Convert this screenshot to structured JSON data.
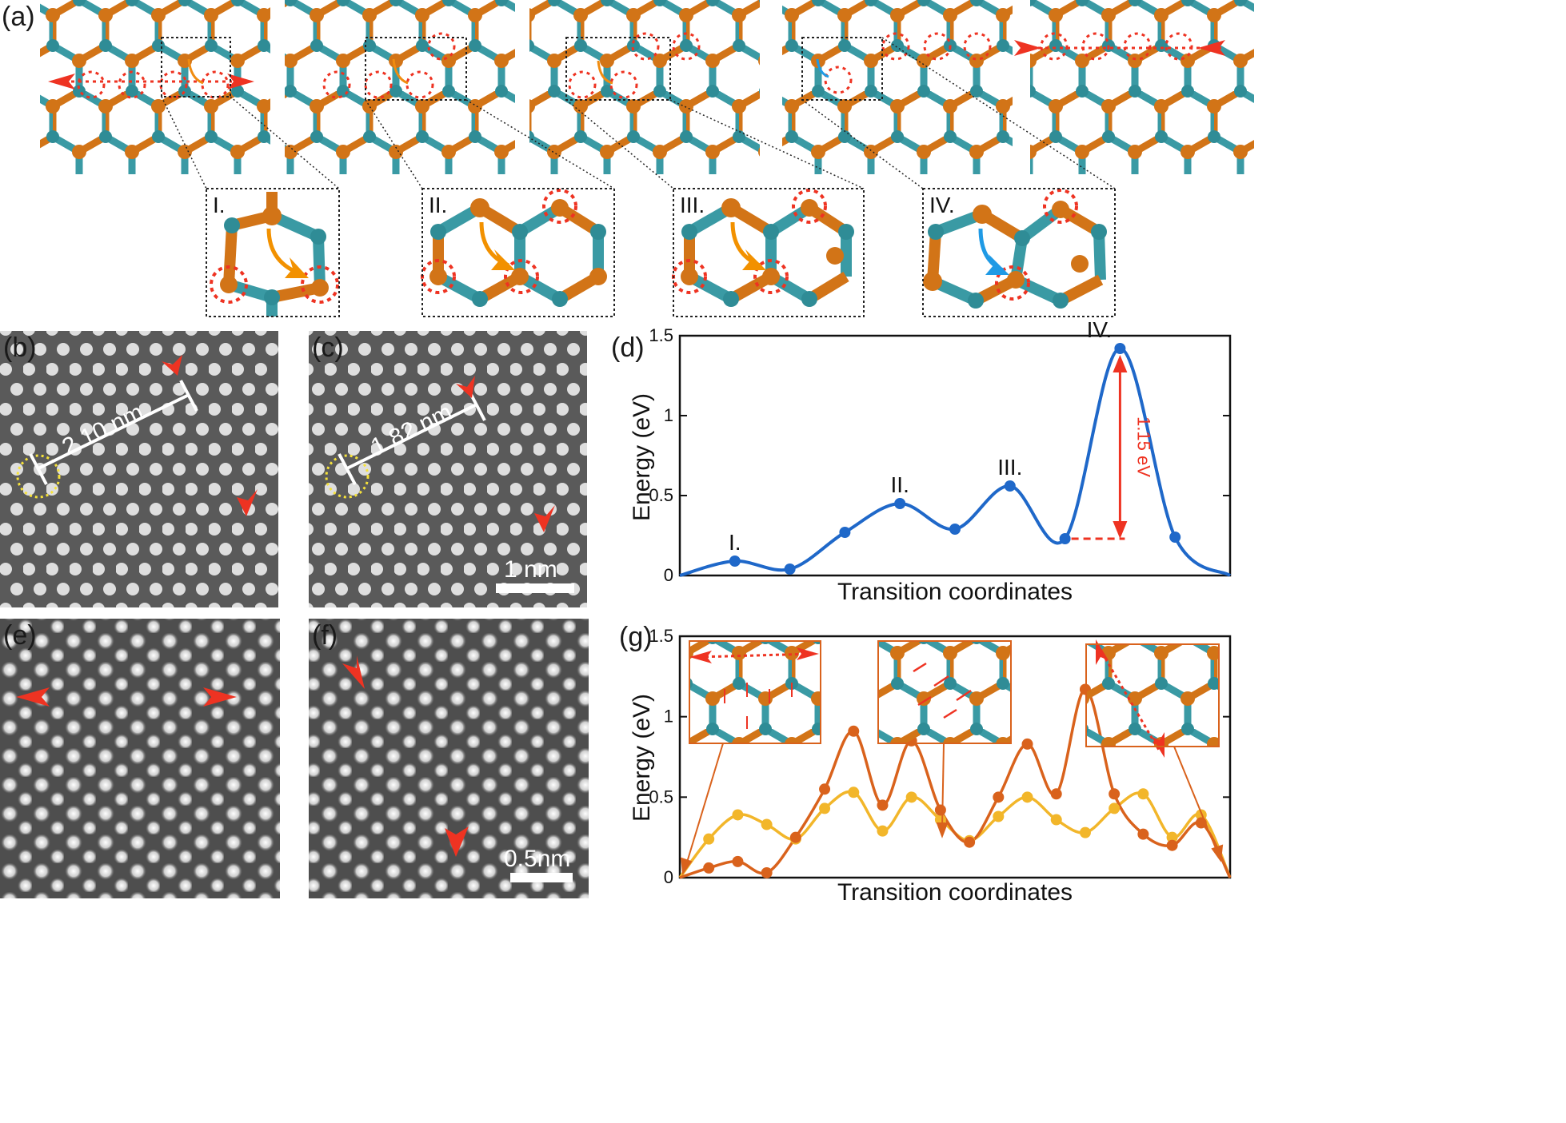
{
  "panel_labels": {
    "a": "(a)",
    "b": "(b)",
    "c": "(c)",
    "d": "(d)",
    "e": "(e)",
    "f": "(f)",
    "g": "(g)"
  },
  "insets": {
    "i": "I.",
    "ii": "II.",
    "iii": "III.",
    "iv": "IV."
  },
  "micrographs": {
    "b_distance": "2.10 nm",
    "c_distance": "1.82 nm",
    "c_scale": "1 nm",
    "f_scale": "0.5nm"
  },
  "colors": {
    "atom_orange": "#d27417",
    "atom_teal": "#3a9aa4",
    "curve_blue": "#1f68c9",
    "curve_orange": "#d9621c",
    "curve_yellow": "#f2b62a",
    "marker_red": "#ee3322"
  },
  "chart_data": [
    {
      "panel": "d",
      "type": "line",
      "xlabel": "Transition coordinates",
      "ylabel": "Energy (eV)",
      "ylim": [
        0,
        1.5
      ],
      "yticks": [
        "0",
        "0.5",
        "1",
        "1.5"
      ],
      "grid": false,
      "series": [
        {
          "color": "#1f68c9",
          "x": [
            0,
            1,
            2,
            3,
            4,
            5,
            6,
            7,
            8,
            9
          ],
          "y": [
            0.0,
            0.09,
            0.04,
            0.27,
            0.45,
            0.29,
            0.56,
            0.23,
            1.42,
            0.24
          ]
        }
      ],
      "annotations": [
        {
          "text": "I.",
          "x": 1,
          "y": 0.09
        },
        {
          "text": "II.",
          "x": 4,
          "y": 0.45
        },
        {
          "text": "III.",
          "x": 6,
          "y": 0.56
        },
        {
          "text": "IV.",
          "x": 8,
          "y": 1.42
        },
        {
          "text": "1.15 eV",
          "x": 8,
          "y": 0.83
        }
      ]
    },
    {
      "panel": "g",
      "type": "line",
      "xlabel": "Transition coordinates",
      "ylabel": "Energy (eV)",
      "ylim": [
        0,
        1.5
      ],
      "yticks": [
        "0",
        "0.5",
        "1",
        "1.5"
      ],
      "grid": false,
      "series": [
        {
          "color": "#d9621c",
          "x": [
            0,
            1,
            2,
            3,
            4,
            5,
            6,
            7,
            8,
            9,
            10,
            11,
            12,
            13,
            14,
            15,
            16,
            17,
            18,
            19
          ],
          "y": [
            0.0,
            0.06,
            0.1,
            0.03,
            0.25,
            0.55,
            0.91,
            0.45,
            0.85,
            0.42,
            0.22,
            0.5,
            0.83,
            0.52,
            1.17,
            0.52,
            0.27,
            0.2,
            0.34,
            0.0
          ]
        },
        {
          "color": "#f2b62a",
          "x": [
            0,
            1,
            2,
            3,
            4,
            5,
            6,
            7,
            8,
            9,
            10,
            11,
            12,
            13,
            14,
            15,
            16,
            17,
            18,
            19
          ],
          "y": [
            0.0,
            0.24,
            0.39,
            0.33,
            0.24,
            0.43,
            0.53,
            0.29,
            0.5,
            0.36,
            0.23,
            0.38,
            0.5,
            0.36,
            0.28,
            0.43,
            0.52,
            0.25,
            0.39,
            0.0
          ]
        }
      ]
    }
  ]
}
